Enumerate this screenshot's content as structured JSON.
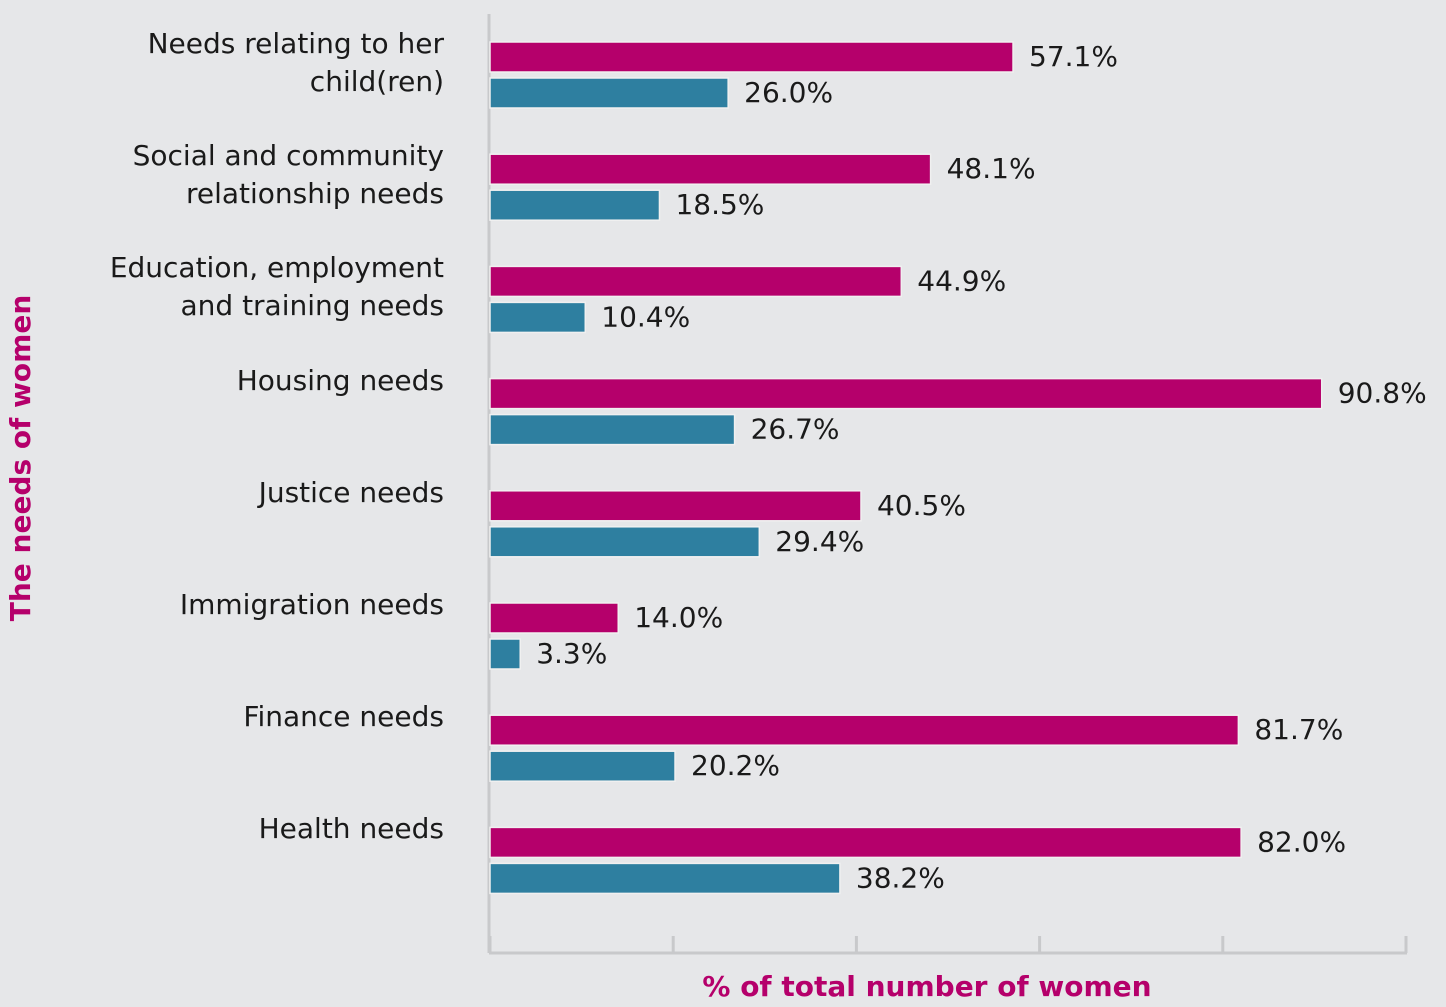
{
  "chart_data": {
    "type": "barh",
    "x_label": "% of total number of women",
    "y_label": "The needs of women",
    "categories": [
      "Needs relating to her\nchild(ren)",
      "Social and community\nrelationship needs",
      "Education, employment\nand training needs",
      "Housing needs",
      "Justice needs",
      "Immigration needs",
      "Finance needs",
      "Health needs"
    ],
    "series": [
      {
        "color": "#b5006b",
        "values": [
          57.1,
          48.1,
          44.9,
          90.8,
          40.5,
          14.0,
          81.7,
          82.0
        ],
        "value_labels": [
          "57.1%",
          "48.1%",
          "44.9%",
          "90.8%",
          "40.5%",
          "14.0%",
          "81.7%",
          "82.0%"
        ]
      },
      {
        "color": "#2e7fa0",
        "values": [
          26.0,
          18.5,
          10.4,
          26.7,
          29.4,
          3.3,
          20.2,
          38.2
        ],
        "value_labels": [
          "26.0%",
          "18.5%",
          "10.4%",
          "26.7%",
          "29.4%",
          "3.3%",
          "20.2%",
          "38.2%"
        ]
      }
    ],
    "xlim": [
      0,
      100
    ],
    "xticks": [
      0,
      20,
      40,
      60,
      80,
      100
    ],
    "title_color": "#b5006b"
  }
}
